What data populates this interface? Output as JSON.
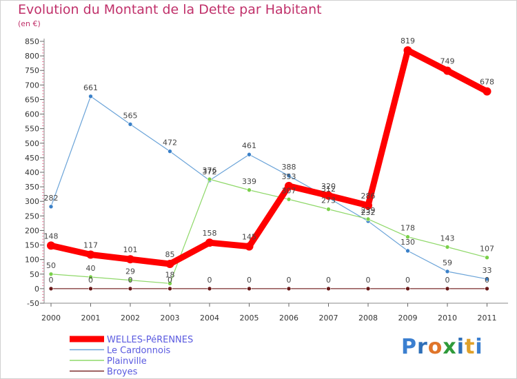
{
  "title": "Evolution du Montant de la Dette par Habitant",
  "subtitle": "(en €)",
  "logo": {
    "letters": [
      {
        "ch": "P",
        "color": "#3b7fd0"
      },
      {
        "ch": "r",
        "color": "#2e6fb8"
      },
      {
        "ch": "o",
        "color": "#e0752a"
      },
      {
        "ch": "x",
        "color": "#2f9a3a"
      },
      {
        "ch": "i",
        "color": "#2e6fb8"
      },
      {
        "ch": "t",
        "color": "#e0a12a"
      },
      {
        "ch": "i",
        "color": "#3b7fd0"
      }
    ]
  },
  "chart_data": {
    "type": "line",
    "categories": [
      "2000",
      "2001",
      "2002",
      "2003",
      "2004",
      "2005",
      "2006",
      "2007",
      "2008",
      "2009",
      "2010",
      "2011"
    ],
    "ylim": [
      -50,
      850
    ],
    "yticks": [
      -50,
      0,
      50,
      100,
      150,
      200,
      250,
      300,
      350,
      400,
      450,
      500,
      550,
      600,
      650,
      700,
      750,
      800,
      850
    ],
    "grid": false,
    "legend": "bottom-left",
    "series": [
      {
        "name": "WELLES-PéRENNES",
        "color": "#ff0000",
        "width": 9,
        "marker": "#ff0000",
        "markerR": 6,
        "values": [
          148,
          117,
          101,
          85,
          158,
          145,
          353,
          320,
          286,
          819,
          749,
          678
        ],
        "labelDy": -10
      },
      {
        "name": "Le Cardonnois",
        "color": "#6aa3d8",
        "width": 1.2,
        "marker": "#3a80c8",
        "markerR": 3,
        "values": [
          282,
          661,
          565,
          472,
          372,
          461,
          388,
          312,
          232,
          130,
          59,
          33
        ],
        "labelDy": -9
      },
      {
        "name": "Plainville",
        "color": "#8ed868",
        "width": 1.2,
        "marker": "#7ad04a",
        "markerR": 3,
        "values": [
          50,
          40,
          29,
          18,
          376,
          339,
          307,
          273,
          239,
          178,
          143,
          107
        ],
        "labelDy": -9
      },
      {
        "name": "Broyes",
        "color": "#7a2a2a",
        "width": 1.2,
        "marker": "#6a1a1a",
        "markerR": 3,
        "values": [
          0,
          0,
          0,
          0,
          0,
          0,
          0,
          0,
          0,
          0,
          0,
          0
        ],
        "labelDy": -9
      }
    ]
  }
}
